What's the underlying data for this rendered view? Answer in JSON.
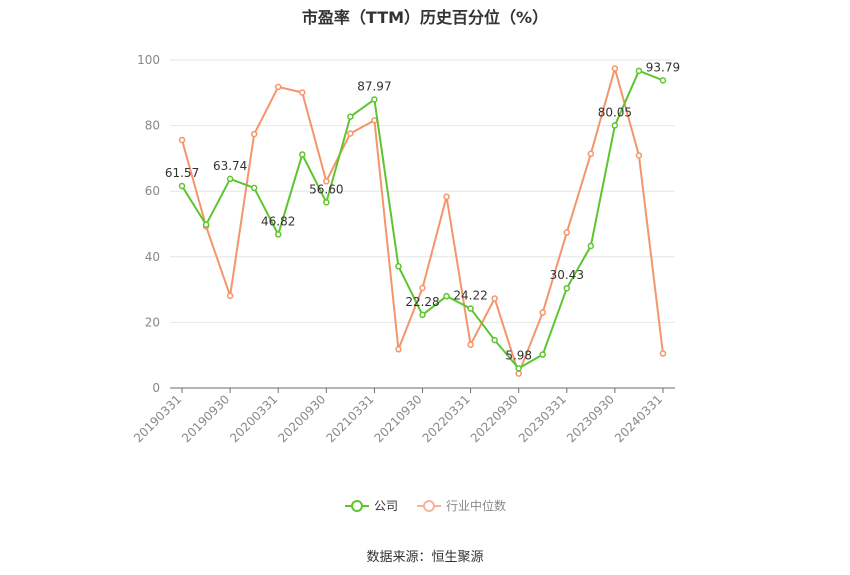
{
  "chart_data": {
    "type": "line",
    "title": "市盈率（TTM）历史百分位（%）",
    "ylim": [
      0,
      100
    ],
    "yticks": [
      0,
      20,
      40,
      60,
      80,
      100
    ],
    "grid": true,
    "legend_position": "bottom",
    "x": [
      "20190331",
      "20190630",
      "20190930",
      "20191231",
      "20200331",
      "20200630",
      "20200930",
      "20201231",
      "20210331",
      "20210630",
      "20210930",
      "20211231",
      "20220331",
      "20220630",
      "20220930",
      "20221231",
      "20230331",
      "20230630",
      "20230930",
      "20231231",
      "20240331"
    ],
    "x_tick_labels": [
      "20190331",
      "20190930",
      "20200331",
      "20200930",
      "20210331",
      "20210930",
      "20220331",
      "20220930",
      "20230331",
      "20230930",
      "20240331"
    ],
    "series": [
      {
        "name": "公司",
        "color": "#5cc52f",
        "values": [
          61.57,
          49.8,
          63.74,
          61.0,
          46.82,
          71.2,
          56.6,
          82.7,
          87.97,
          37.1,
          22.28,
          28.0,
          24.22,
          14.6,
          5.98,
          10.2,
          30.43,
          43.3,
          80.05,
          96.7,
          93.79
        ],
        "labels": {
          "0": "61.57",
          "2": "63.74",
          "4": "46.82",
          "6": "56.60",
          "8": "87.97",
          "10": "22.28",
          "12": "24.22",
          "14": "5.98",
          "16": "30.43",
          "18": "80.05",
          "20": "93.79"
        }
      },
      {
        "name": "行业中位数",
        "color": "#f4956a",
        "values": [
          75.6,
          49.3,
          28.1,
          77.4,
          91.8,
          90.1,
          63.0,
          77.6,
          81.6,
          11.8,
          30.5,
          58.3,
          13.2,
          27.3,
          4.4,
          23.0,
          47.4,
          71.4,
          97.4,
          70.9,
          10.5
        ]
      }
    ]
  },
  "source_note": "数据来源：恒生聚源"
}
